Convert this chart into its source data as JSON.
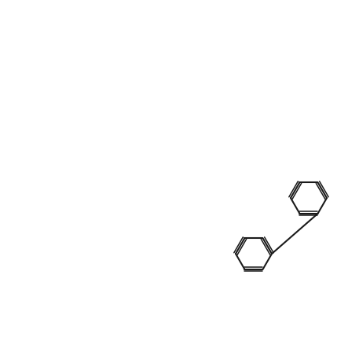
{
  "bg": "#ffffff",
  "bc": "#1a1a1a",
  "nc": "#0000ee",
  "oc": "#dd0000",
  "figsize": [
    4.43,
    4.43
  ],
  "dpi": 100
}
